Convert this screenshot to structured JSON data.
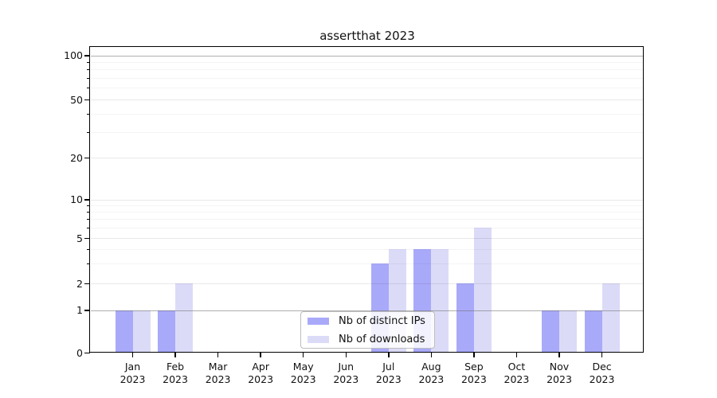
{
  "chart_data": {
    "type": "bar",
    "title": "assertthat 2023",
    "months": [
      "Jan",
      "Feb",
      "Mar",
      "Apr",
      "May",
      "Jun",
      "Jul",
      "Aug",
      "Sep",
      "Oct",
      "Nov",
      "Dec"
    ],
    "year_label": "2023",
    "series": [
      {
        "name": "Nb of distinct IPs",
        "color": "#a9a9fa",
        "values": [
          1,
          1,
          0,
          0,
          0,
          0,
          3,
          4,
          2,
          0,
          1,
          1
        ]
      },
      {
        "name": "Nb of downloads",
        "color": "#dbdbf8",
        "values": [
          1,
          2,
          0,
          0,
          0,
          0,
          4,
          4,
          6,
          0,
          1,
          2
        ]
      }
    ],
    "y_ticks": [
      0,
      1,
      2,
      5,
      10,
      20,
      50,
      100
    ],
    "y_scale": "symlog",
    "ylim": [
      0,
      115
    ],
    "grid": "horizontal, major and minor, drawn over bars",
    "legend_position": "lower center inside plot"
  }
}
